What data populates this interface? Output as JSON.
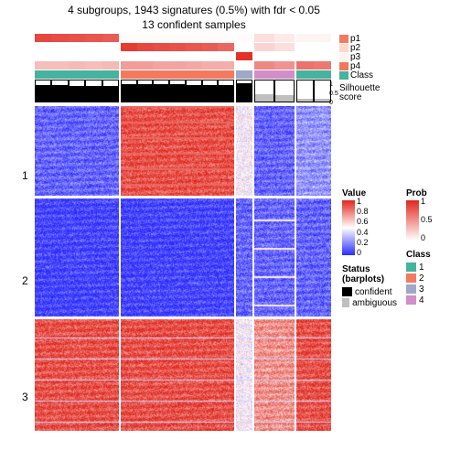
{
  "title": {
    "line1": "4 subgroups, 1943 signatures (0.5%) with fdr < 0.05",
    "line2": "13 confident samples",
    "fontsize": 12
  },
  "layout": {
    "group_widths": [
      92,
      124,
      18,
      44,
      38
    ],
    "group_gap": 2,
    "group_cols": [
      5,
      7,
      1,
      2,
      2
    ],
    "heatmap_height": 355,
    "row_cluster_splits": [
      0.28,
      0.65,
      1.0
    ],
    "row_labels": [
      "1",
      "2",
      "3"
    ]
  },
  "annotations": {
    "p1": {
      "label": "p1",
      "type": "prob",
      "values": [
        0.85,
        0.82,
        0.8,
        0.78,
        0.75,
        0.02,
        0.02,
        0.02,
        0.02,
        0.02,
        0.02,
        0.02,
        0.02,
        0.15,
        0.1,
        0.05,
        0.05
      ]
    },
    "p2": {
      "label": "p2",
      "type": "prob",
      "values": [
        0.0,
        0.0,
        0.0,
        0.0,
        0.0,
        0.9,
        0.85,
        0.82,
        0.8,
        0.78,
        0.75,
        0.7,
        0.0,
        0.2,
        0.15,
        0.0,
        0.0
      ]
    },
    "p3": {
      "label": "p3",
      "type": "prob",
      "values": [
        0.0,
        0.0,
        0.0,
        0.0,
        0.0,
        0.0,
        0.0,
        0.0,
        0.0,
        0.0,
        0.0,
        0.0,
        0.95,
        0.0,
        0.0,
        0.0,
        0.0
      ]
    },
    "p4": {
      "label": "p4",
      "type": "prob",
      "values": [
        0.3,
        0.3,
        0.32,
        0.3,
        0.32,
        0.45,
        0.45,
        0.42,
        0.42,
        0.4,
        0.38,
        0.38,
        0.0,
        0.55,
        0.5,
        0.65,
        0.62
      ]
    },
    "class": {
      "label": "Class",
      "type": "class",
      "values": [
        1,
        1,
        1,
        1,
        1,
        2,
        2,
        2,
        2,
        2,
        2,
        2,
        3,
        4,
        4,
        1,
        1
      ]
    },
    "silhouette": {
      "label": "Silhouette\nscore",
      "type": "silh",
      "values": [
        0.8,
        0.78,
        0.76,
        0.75,
        0.73,
        0.85,
        0.84,
        0.83,
        0.82,
        0.81,
        0.8,
        0.78,
        0.9,
        0.35,
        0.3,
        0.15,
        0.12
      ]
    }
  },
  "annotation_side": {
    "p1_swatch": "#f47a5f",
    "p2_swatch": "#fdd8cc",
    "p3_swatch": "#fef2ed",
    "p4_swatch": "#f37659",
    "class_swatch": "#45b39d"
  },
  "heatmap": {
    "row_cluster_profiles": [
      {
        "g1": "low",
        "g2": "high",
        "g3": "mid",
        "g4": "low",
        "g5": "midlow"
      },
      {
        "g1": "vlow",
        "g2": "vlow",
        "g3": "low",
        "g4": "low",
        "g5": "low"
      },
      {
        "g1": "high",
        "g2": "high",
        "g3": "mid",
        "g4": "midhigh",
        "g5": "high"
      }
    ]
  },
  "colors": {
    "value_high": "#e1261c",
    "value_mid": "#ffffff",
    "value_low": "#2b2bff",
    "prob_high": "#e1261c",
    "prob_low": "#ffffff",
    "class": {
      "1": "#45b39d",
      "2": "#f47a5f",
      "3": "#9fa8c9",
      "4": "#d18ec8"
    },
    "status_confident": "#000000",
    "status_ambiguous": "#bfbfbf",
    "background": "#ffffff"
  },
  "legends": {
    "value": {
      "title": "Value",
      "ticks": [
        "1",
        "0.8",
        "0.6",
        "0.4",
        "0.2",
        "0"
      ]
    },
    "status": {
      "title": "Status (barplots)",
      "items": [
        {
          "label": "confident",
          "color": "#000000"
        },
        {
          "label": "ambiguous",
          "color": "#bfbfbf"
        }
      ]
    },
    "prob": {
      "title": "Prob",
      "ticks": [
        "1",
        "0.5",
        "0"
      ]
    },
    "class": {
      "title": "Class",
      "items": [
        {
          "label": "1",
          "color": "#45b39d"
        },
        {
          "label": "2",
          "color": "#f47a5f"
        },
        {
          "label": "3",
          "color": "#9fa8c9"
        },
        {
          "label": "4",
          "color": "#d18ec8"
        }
      ]
    }
  },
  "silh_axis": {
    "ticks": [
      "1",
      "0.5",
      "0"
    ]
  }
}
